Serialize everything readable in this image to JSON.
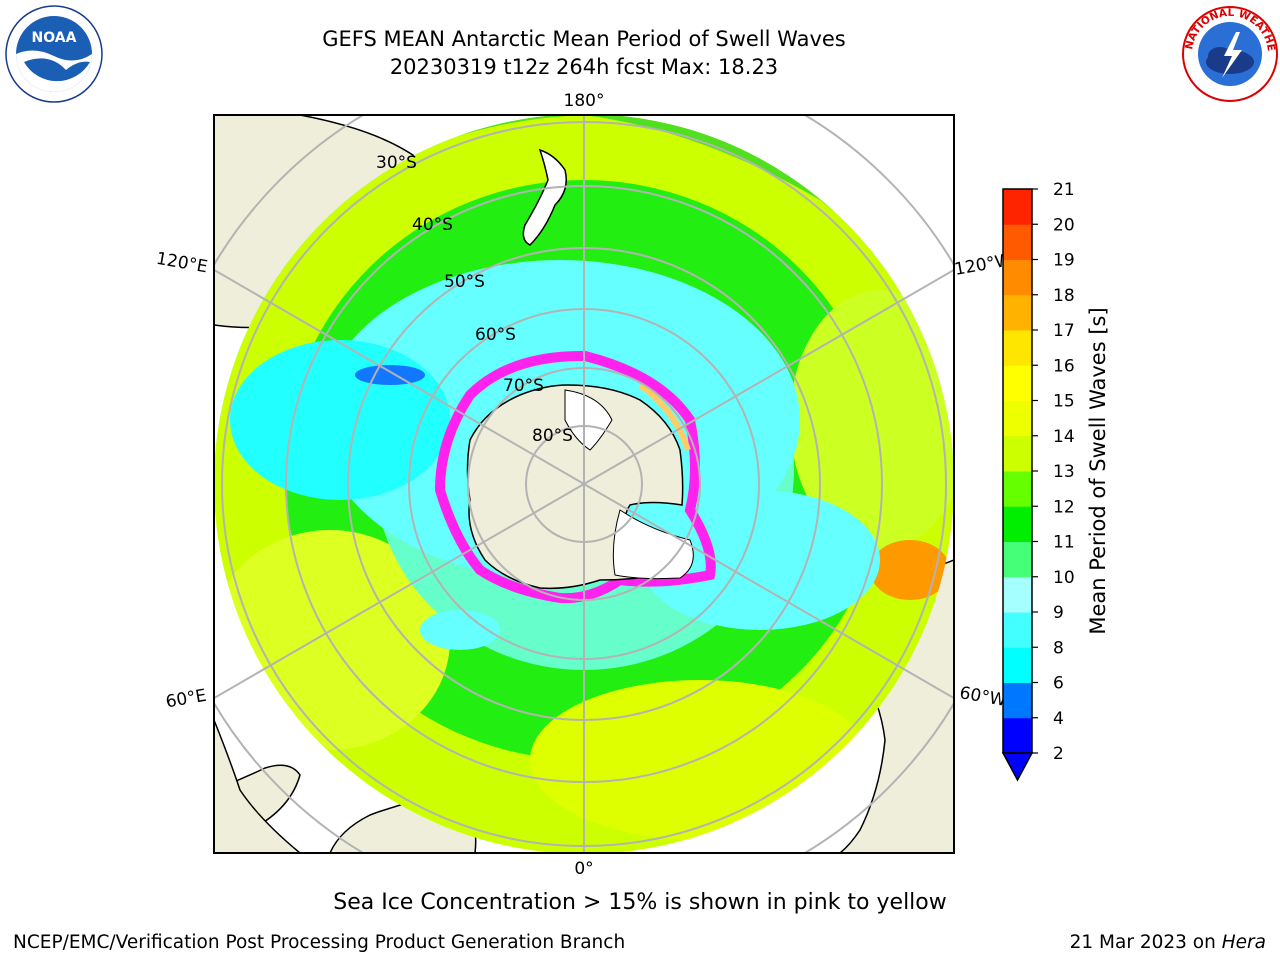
{
  "title": {
    "line1": "GEFS MEAN Antarctic Mean Period of Swell Waves",
    "line2": "20230319 t12z 264h fcst   Max: 18.23"
  },
  "logos": {
    "left": {
      "icon": "noaa-logo",
      "text": "NOAA"
    },
    "right": {
      "icon": "nws-logo",
      "text": "NATIONAL WEATHER SERVICE"
    }
  },
  "map": {
    "projection": "south-polar-stereographic",
    "longitude_labels": {
      "top": "180°",
      "bottom": "0°",
      "upper_left": "120°E",
      "upper_right": "120°W",
      "lower_left": "60°E",
      "lower_right": "60°W"
    },
    "latitude_labels": [
      "30°S",
      "40°S",
      "50°S",
      "60°S",
      "70°S",
      "80°S"
    ],
    "colors": {
      "land": "#efeedb",
      "grid": "#b3b3b3",
      "sea_ice_low": "#ff00ff",
      "sea_ice_high": "#ffff66"
    }
  },
  "colorbar": {
    "label": "Mean Period of Swell Waves [s]",
    "ticks": [
      "2",
      "4",
      "6",
      "8",
      "9",
      "10",
      "11",
      "12",
      "13",
      "14",
      "15",
      "16",
      "17",
      "18",
      "19",
      "20",
      "21"
    ],
    "colors": [
      "#0000ff",
      "#0077ff",
      "#00ffff",
      "#44ffff",
      "#a6ffff",
      "#44ff77",
      "#00ee00",
      "#66ff00",
      "#ccff00",
      "#eeff00",
      "#ffff00",
      "#ffe600",
      "#ffb300",
      "#ff8c00",
      "#ff5a00",
      "#ff2400"
    ],
    "extend_min_color": "#0000ff"
  },
  "footnote": "Sea Ice Concentration > 15% is shown in pink to yellow",
  "credits": {
    "left": "NCEP/EMC/Verification Post Processing Product Generation Branch",
    "right_date": "21 Mar 2023 on",
    "right_machine": "Hera"
  }
}
